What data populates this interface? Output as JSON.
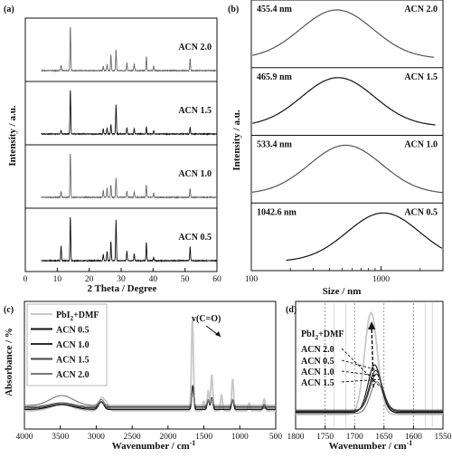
{
  "chart_data": [
    {
      "panel": "(a)",
      "type": "line",
      "xlabel": "2 Theta / Degree",
      "ylabel": "Intensity / a.u.",
      "xlim": [
        0,
        60
      ],
      "xticks": [
        0,
        10,
        20,
        30,
        40,
        50,
        60
      ],
      "series": [
        {
          "name": "ACN 2.0",
          "peaks": [
            [
              11.2,
              0.12
            ],
            [
              14.1,
              1.0
            ],
            [
              24.4,
              0.1
            ],
            [
              25.6,
              0.14
            ],
            [
              26.8,
              0.36
            ],
            [
              28.4,
              0.48
            ],
            [
              31.8,
              0.18
            ],
            [
              34.1,
              0.16
            ],
            [
              37.9,
              0.32
            ],
            [
              40.2,
              0.1
            ],
            [
              51.6,
              0.28
            ]
          ]
        },
        {
          "name": "ACN 1.5",
          "peaks": [
            [
              11.2,
              0.08
            ],
            [
              14.1,
              1.0
            ],
            [
              24.4,
              0.12
            ],
            [
              25.6,
              0.14
            ],
            [
              26.8,
              0.22
            ],
            [
              28.4,
              0.68
            ],
            [
              31.8,
              0.14
            ],
            [
              34.1,
              0.12
            ],
            [
              37.9,
              0.15
            ],
            [
              40.2,
              0.08
            ],
            [
              51.6,
              0.16
            ]
          ]
        },
        {
          "name": "ACN 1.0",
          "peaks": [
            [
              11.2,
              0.14
            ],
            [
              14.1,
              1.0
            ],
            [
              24.4,
              0.16
            ],
            [
              25.6,
              0.22
            ],
            [
              26.8,
              0.28
            ],
            [
              28.4,
              0.44
            ],
            [
              31.8,
              0.14
            ],
            [
              34.1,
              0.12
            ],
            [
              37.9,
              0.28
            ],
            [
              40.2,
              0.1
            ],
            [
              51.6,
              0.2
            ]
          ]
        },
        {
          "name": "ACN 0.5",
          "peaks": [
            [
              11.2,
              0.34
            ],
            [
              14.1,
              1.0
            ],
            [
              24.4,
              0.14
            ],
            [
              25.6,
              0.22
            ],
            [
              26.8,
              0.44
            ],
            [
              28.4,
              0.94
            ],
            [
              31.8,
              0.22
            ],
            [
              34.1,
              0.16
            ],
            [
              37.9,
              0.42
            ],
            [
              40.2,
              0.08
            ],
            [
              51.6,
              0.32
            ]
          ]
        }
      ]
    },
    {
      "panel": "(b)",
      "type": "line",
      "xlabel": "Size / nm",
      "ylabel": "Intensity / a.u.",
      "xscale": "log",
      "xlim": [
        100,
        3000
      ],
      "xticks": [
        100,
        1000
      ],
      "series": [
        {
          "name": "ACN 2.0",
          "peak_label": "455.4 nm",
          "peak_size": 455.4
        },
        {
          "name": "ACN 1.5",
          "peak_label": "465.9 nm",
          "peak_size": 465.9
        },
        {
          "name": "ACN 1.0",
          "peak_label": "533.4 nm",
          "peak_size": 533.4
        },
        {
          "name": "ACN 0.5",
          "peak_label": "1042.6 nm",
          "peak_size": 1042.6
        }
      ]
    },
    {
      "panel": "(c)",
      "type": "line",
      "xlabel": "Wavenumber / cm-1",
      "ylabel": "Absorbance / %",
      "xlim": [
        4000,
        500
      ],
      "xticks": [
        4000,
        3500,
        3000,
        2500,
        2000,
        1500,
        1000,
        500
      ],
      "annotation": "v(C=O)",
      "legend_position": "top-left",
      "series": [
        {
          "name": "PbI2+DMF",
          "color": "#c8c8c8",
          "peaks": [
            [
              3480,
              0.06
            ],
            [
              2930,
              0.12
            ],
            [
              2860,
              0.08
            ],
            [
              1660,
              0.92
            ],
            [
              1500,
              0.1
            ],
            [
              1440,
              0.2
            ],
            [
              1390,
              0.36
            ],
            [
              1255,
              0.16
            ],
            [
              1100,
              0.32
            ],
            [
              870,
              0.08
            ],
            [
              660,
              0.12
            ]
          ]
        },
        {
          "name": "ACN 0.5",
          "color": "#111111",
          "peaks": [
            [
              3480,
              0.05
            ],
            [
              2930,
              0.08
            ],
            [
              1655,
              0.24
            ],
            [
              1440,
              0.1
            ],
            [
              1390,
              0.12
            ],
            [
              1100,
              0.1
            ],
            [
              660,
              0.05
            ]
          ]
        },
        {
          "name": "ACN 1.0",
          "color": "#2b2b2b",
          "peaks": [
            [
              3480,
              0.04
            ],
            [
              2930,
              0.06
            ],
            [
              1655,
              0.2
            ],
            [
              1440,
              0.08
            ],
            [
              1390,
              0.1
            ],
            [
              1100,
              0.08
            ]
          ]
        },
        {
          "name": "ACN 1.5",
          "color": "#444444",
          "peaks": [
            [
              3480,
              0.04
            ],
            [
              2930,
              0.05
            ],
            [
              1655,
              0.17
            ],
            [
              1440,
              0.07
            ],
            [
              1390,
              0.08
            ],
            [
              1100,
              0.07
            ]
          ]
        },
        {
          "name": "ACN 2.0",
          "color": "#777777",
          "peaks": [
            [
              3480,
              0.1
            ],
            [
              2930,
              0.06
            ],
            [
              1655,
              0.14
            ],
            [
              1440,
              0.06
            ],
            [
              1390,
              0.07
            ],
            [
              1100,
              0.06
            ]
          ]
        }
      ]
    },
    {
      "panel": "(d)",
      "type": "line",
      "xlabel": "Wavenumber / cm-1",
      "xlim": [
        1800,
        1550
      ],
      "xticks": [
        1800,
        1750,
        1700,
        1650,
        1600,
        1550
      ],
      "series": [
        {
          "name": "PbI2+DMF",
          "color": "#c8c8c8",
          "center": 1672,
          "height": 0.9
        },
        {
          "name": "ACN 2.0",
          "color": "#777777",
          "center": 1662,
          "height": 0.28
        },
        {
          "name": "ACN 0.5",
          "color": "#111111",
          "center": 1666,
          "height": 0.42
        },
        {
          "name": "ACN 1.0",
          "color": "#2b2b2b",
          "center": 1664,
          "height": 0.36
        },
        {
          "name": "ACN 1.5",
          "color": "#444444",
          "center": 1663,
          "height": 0.32
        }
      ]
    }
  ]
}
